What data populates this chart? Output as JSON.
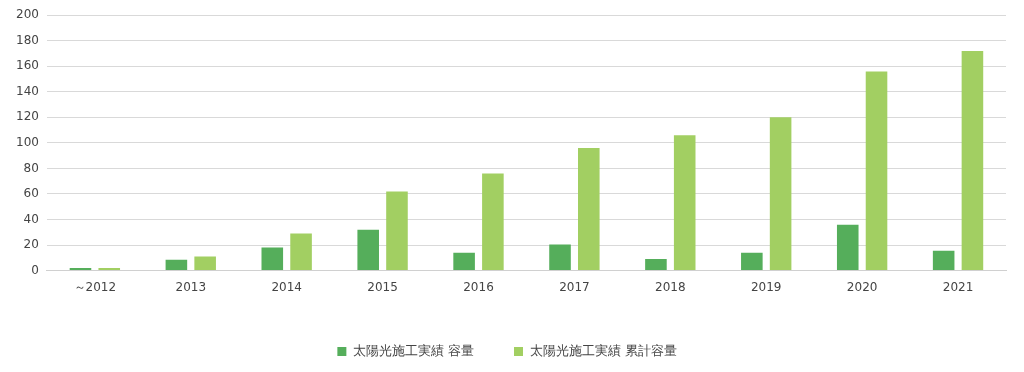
{
  "chart_data": {
    "type": "bar",
    "categories": [
      "～2012",
      "2013",
      "2014",
      "2015",
      "2016",
      "2017",
      "2018",
      "2019",
      "2020",
      "2021"
    ],
    "series": [
      {
        "name": "太陽光施工実績 容量",
        "color": "#55ae5b",
        "values": [
          2,
          8.5,
          18,
          32,
          14,
          20.5,
          9,
          14,
          36,
          15.5
        ]
      },
      {
        "name": "太陽光施工実績 累計容量",
        "color": "#a2cf62",
        "values": [
          2,
          11,
          29,
          62,
          76,
          96,
          106,
          120,
          156,
          172
        ]
      }
    ],
    "ylim": [
      0,
      200
    ],
    "yticks": [
      0,
      20,
      40,
      60,
      80,
      100,
      120,
      140,
      160,
      180,
      200
    ],
    "grid": "y",
    "legend": "bottom"
  }
}
